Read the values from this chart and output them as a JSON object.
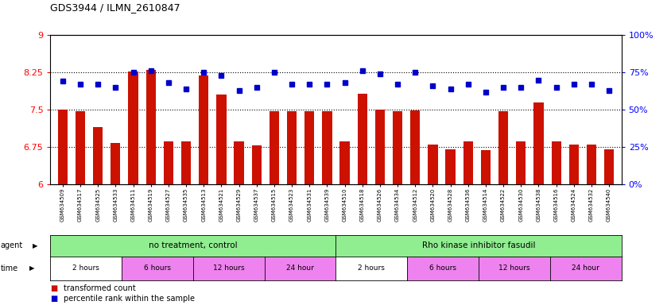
{
  "title": "GDS3944 / ILMN_2610847",
  "samples": [
    "GSM634509",
    "GSM634517",
    "GSM634525",
    "GSM634533",
    "GSM634511",
    "GSM634519",
    "GSM634527",
    "GSM634535",
    "GSM634513",
    "GSM634521",
    "GSM634529",
    "GSM634537",
    "GSM634515",
    "GSM634523",
    "GSM634531",
    "GSM634539",
    "GSM634510",
    "GSM634518",
    "GSM634526",
    "GSM634534",
    "GSM634512",
    "GSM634520",
    "GSM634528",
    "GSM634536",
    "GSM634514",
    "GSM634522",
    "GSM634530",
    "GSM634538",
    "GSM634516",
    "GSM634524",
    "GSM634532",
    "GSM634540"
  ],
  "bar_values": [
    7.5,
    7.47,
    7.15,
    6.84,
    8.27,
    8.3,
    6.87,
    6.87,
    8.19,
    7.8,
    6.87,
    6.78,
    7.47,
    7.47,
    7.47,
    7.47,
    6.87,
    7.82,
    7.5,
    7.47,
    7.48,
    6.8,
    6.7,
    6.87,
    6.69,
    7.47,
    6.87,
    7.65,
    6.87,
    6.8,
    6.8,
    6.71
  ],
  "percentile_values": [
    69,
    67,
    67,
    65,
    75,
    76,
    68,
    64,
    75,
    73,
    63,
    65,
    75,
    67,
    67,
    67,
    68,
    76,
    74,
    67,
    75,
    66,
    64,
    67,
    62,
    65,
    65,
    70,
    65,
    67,
    67,
    63
  ],
  "ylim_left": [
    6,
    9
  ],
  "ylim_right": [
    0,
    100
  ],
  "yticks_left": [
    6,
    6.75,
    7.5,
    8.25,
    9
  ],
  "ytick_labels_left": [
    "6",
    "6.75",
    "7.5",
    "8.25",
    "9"
  ],
  "yticks_right": [
    0,
    25,
    50,
    75,
    100
  ],
  "ytick_labels_right": [
    "0%",
    "25%",
    "50%",
    "75%",
    "100%"
  ],
  "bar_color": "#cc1100",
  "dot_color": "#0000cc",
  "grid_values": [
    6.75,
    7.5,
    8.25
  ],
  "agent_label_left": "no treatment, control",
  "agent_label_right": "Rho kinase inhibitor fasudil",
  "agent_color": "#90ee90",
  "time_groups": [
    {
      "label": "2 hours",
      "start": 0,
      "end": 4,
      "color": "#ffffff"
    },
    {
      "label": "6 hours",
      "start": 4,
      "end": 8,
      "color": "#ee82ee"
    },
    {
      "label": "12 hours",
      "start": 8,
      "end": 12,
      "color": "#ee82ee"
    },
    {
      "label": "24 hour",
      "start": 12,
      "end": 16,
      "color": "#ee82ee"
    },
    {
      "label": "2 hours",
      "start": 16,
      "end": 20,
      "color": "#ffffff"
    },
    {
      "label": "6 hours",
      "start": 20,
      "end": 24,
      "color": "#ee82ee"
    },
    {
      "label": "12 hours",
      "start": 24,
      "end": 28,
      "color": "#ee82ee"
    },
    {
      "label": "24 hour",
      "start": 28,
      "end": 32,
      "color": "#ee82ee"
    }
  ],
  "legend_red_label": "transformed count",
  "legend_blue_label": "percentile rank within the sample",
  "bg_color": "#f0f0f0"
}
